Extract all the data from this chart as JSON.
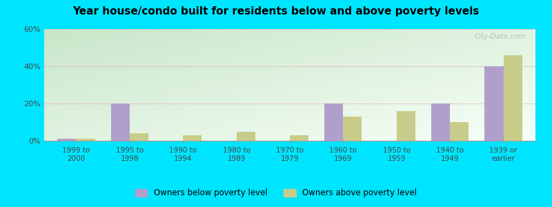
{
  "title": "Year house/condo built for residents below and above poverty levels",
  "categories": [
    "1999 to\n2000",
    "1995 to\n1998",
    "1990 to\n1994",
    "1980 to\n1989",
    "1970 to\n1979",
    "1960 to\n1969",
    "1950 to\n1959",
    "1940 to\n1949",
    "1939 or\nearlier"
  ],
  "below_poverty": [
    1,
    20,
    0,
    0,
    0,
    20,
    0,
    20,
    40
  ],
  "above_poverty": [
    1,
    4,
    3,
    5,
    3,
    13,
    16,
    10,
    46
  ],
  "below_color": "#b09fcc",
  "above_color": "#c8cc8a",
  "ylim": [
    0,
    60
  ],
  "yticks": [
    0,
    20,
    40,
    60
  ],
  "ytick_labels": [
    "0%",
    "20%",
    "40%",
    "60%"
  ],
  "outer_bg": "#00e5ff",
  "bar_width": 0.35,
  "legend_below": "Owners below poverty level",
  "legend_above": "Owners above poverty level",
  "watermark": "City-Data.com",
  "grad_bottom_left": "#c8e6c9",
  "grad_top_right": "#f8fff8",
  "grid_color": "#e8c8d0",
  "grid_alpha": 0.6
}
